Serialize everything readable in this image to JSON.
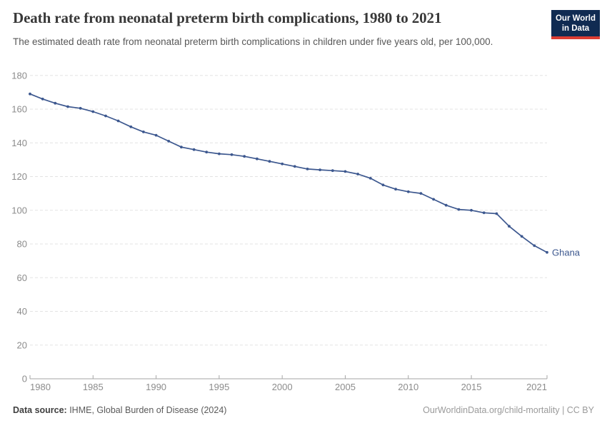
{
  "header": {
    "title": "Death rate from neonatal preterm birth complications, 1980 to 2021",
    "subtitle": "The estimated death rate from neonatal preterm birth complications in children under five years old, per 100,000.",
    "logo_line1": "Our World",
    "logo_line2": "in Data"
  },
  "footer": {
    "source_label": "Data source:",
    "source_text": " IHME, Global Burden of Disease (2024)",
    "attribution": "OurWorldinData.org/child-mortality | CC BY"
  },
  "colors": {
    "line": "#3d588f",
    "entity_label": "#3d588f",
    "grid": "#e3e3e3",
    "axis": "#a6a6a6",
    "tick_label": "#8c8c8c",
    "logo_navy": "#102b52",
    "logo_red": "#dc3d33"
  },
  "chart_data": {
    "type": "line",
    "title": "Death rate from neonatal preterm birth complications, 1980 to 2021",
    "subtitle": "The estimated death rate from neonatal preterm birth complications in children under five years old, per 100,000.",
    "xlabel": "",
    "ylabel": "",
    "ylim": [
      0,
      180
    ],
    "yticks": [
      0,
      20,
      40,
      60,
      80,
      100,
      120,
      140,
      160,
      180
    ],
    "xticks": [
      1980,
      1985,
      1990,
      1995,
      2000,
      2005,
      2010,
      2015,
      2021
    ],
    "grid": "dashed-horizontal",
    "legend_position": "end-of-line-label",
    "x": [
      1980,
      1981,
      1982,
      1983,
      1984,
      1985,
      1986,
      1987,
      1988,
      1989,
      1990,
      1991,
      1992,
      1993,
      1994,
      1995,
      1996,
      1997,
      1998,
      1999,
      2000,
      2001,
      2002,
      2003,
      2004,
      2005,
      2006,
      2007,
      2008,
      2009,
      2010,
      2011,
      2012,
      2013,
      2014,
      2015,
      2016,
      2017,
      2018,
      2019,
      2020,
      2021
    ],
    "series": [
      {
        "name": "Ghana",
        "values": [
          169,
          166,
          163.5,
          161.5,
          160.5,
          158.5,
          156,
          153,
          149.5,
          146.5,
          144.5,
          141,
          137.5,
          136,
          134.5,
          133.5,
          133,
          132,
          130.5,
          129,
          127.5,
          126,
          124.5,
          124,
          123.5,
          123,
          121.5,
          119,
          115,
          112.5,
          111,
          110,
          106.5,
          103,
          100.5,
          100,
          98.5,
          98,
          90.5,
          84.5,
          79,
          75
        ]
      }
    ]
  }
}
